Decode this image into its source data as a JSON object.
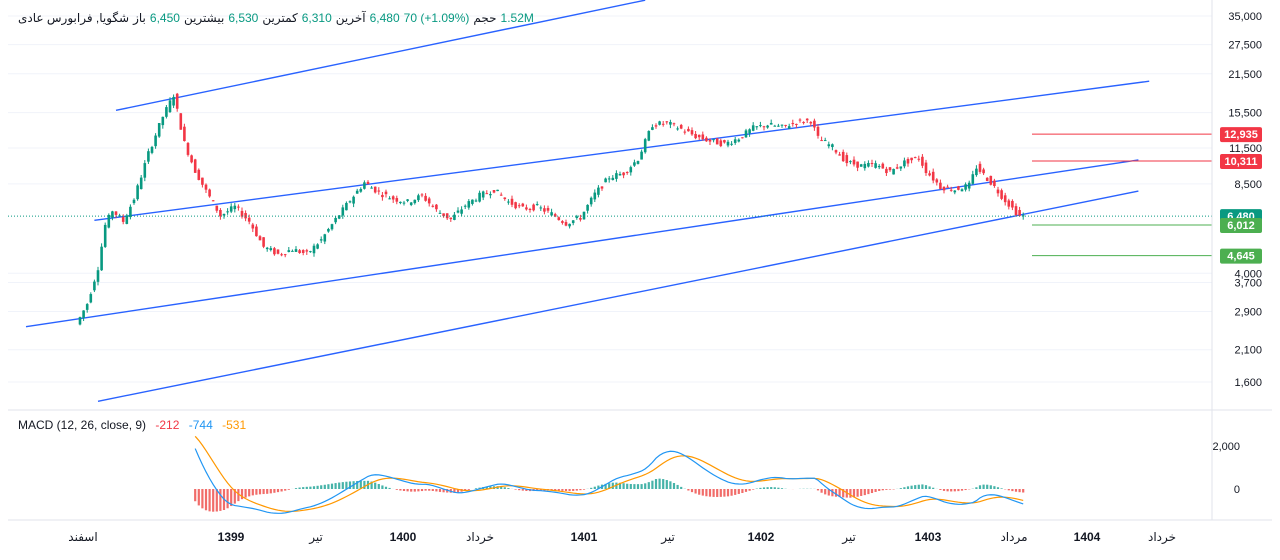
{
  "legend": {
    "title": "شگویا, فرابورس عادی",
    "open_label": "باز",
    "open_value": "6,450",
    "high_label": "بیشترین",
    "high_value": "6,530",
    "low_label": "کمترین",
    "low_value": "6,310",
    "close_label": "آخرین",
    "close_value": "6,480",
    "change": "70 (+1.09%)",
    "volume_label": "حجم",
    "volume_value": "1.52M"
  },
  "macd_legend": {
    "label": "MACD (12, 26, close, 9)",
    "hist": "-212",
    "macd": "-744",
    "signal": "-531"
  },
  "colors": {
    "up": "#089981",
    "down": "#f23645",
    "channel": "#2962ff",
    "macd": "#2196f3",
    "signal": "#ff9800",
    "resistance": "#f23645",
    "support": "#4caf50"
  },
  "chart_data": {
    "type": "candlestick",
    "y_scale": "log",
    "price_ticks": [
      "35,000",
      "27,500",
      "21,500",
      "15,500",
      "11,500",
      "8,500",
      "4,000",
      "3,700",
      "2,900",
      "2,100",
      "1,600"
    ],
    "price_tick_values": [
      35000,
      27500,
      21500,
      15500,
      11500,
      8500,
      4000,
      3700,
      2900,
      2100,
      1600
    ],
    "time_labels": [
      "اسفند",
      "1399",
      "تیر",
      "1400",
      "خرداد",
      "1401",
      "تیر",
      "1402",
      "تیر",
      "1403",
      "مرداد",
      "1404",
      "خرداد"
    ],
    "time_bold": [
      false,
      true,
      false,
      true,
      false,
      true,
      false,
      true,
      false,
      true,
      false,
      true,
      false
    ],
    "price_badges": [
      {
        "label": "12,935",
        "value": 12935,
        "kind": "resistance"
      },
      {
        "label": "10,311",
        "value": 10311,
        "kind": "resistance"
      },
      {
        "label": "6,480",
        "value": 6480,
        "kind": "last"
      },
      {
        "label": "6,012",
        "value": 6012,
        "kind": "support"
      },
      {
        "label": "4,645",
        "value": 4645,
        "kind": "support"
      }
    ],
    "price_path": [
      [
        0,
        2600
      ],
      [
        3,
        3100
      ],
      [
        6,
        4200
      ],
      [
        8,
        6000
      ],
      [
        10,
        6800
      ],
      [
        13,
        6200
      ],
      [
        16,
        7500
      ],
      [
        20,
        11000
      ],
      [
        24,
        15000
      ],
      [
        27,
        18000
      ],
      [
        30,
        12000
      ],
      [
        33,
        9500
      ],
      [
        36,
        8000
      ],
      [
        40,
        6500
      ],
      [
        44,
        7000
      ],
      [
        48,
        6200
      ],
      [
        52,
        5000
      ],
      [
        56,
        4700
      ],
      [
        60,
        4900
      ],
      [
        64,
        4700
      ],
      [
        68,
        5300
      ],
      [
        72,
        6300
      ],
      [
        76,
        7400
      ],
      [
        80,
        8600
      ],
      [
        84,
        7900
      ],
      [
        88,
        7500
      ],
      [
        92,
        7300
      ],
      [
        96,
        7700
      ],
      [
        100,
        6800
      ],
      [
        104,
        6300
      ],
      [
        108,
        7100
      ],
      [
        112,
        7700
      ],
      [
        116,
        8100
      ],
      [
        120,
        7300
      ],
      [
        124,
        6900
      ],
      [
        128,
        7000
      ],
      [
        132,
        6600
      ],
      [
        136,
        6100
      ],
      [
        140,
        6400
      ],
      [
        144,
        7800
      ],
      [
        148,
        9000
      ],
      [
        152,
        9300
      ],
      [
        156,
        10500
      ],
      [
        160,
        14000
      ],
      [
        164,
        14200
      ],
      [
        168,
        13500
      ],
      [
        172,
        12700
      ],
      [
        176,
        12200
      ],
      [
        180,
        11900
      ],
      [
        184,
        12500
      ],
      [
        188,
        13600
      ],
      [
        192,
        14000
      ],
      [
        196,
        13700
      ],
      [
        200,
        14300
      ],
      [
        204,
        14500
      ],
      [
        206,
        12500
      ],
      [
        210,
        11600
      ],
      [
        214,
        10200
      ],
      [
        218,
        9900
      ],
      [
        222,
        10000
      ],
      [
        226,
        9400
      ],
      [
        230,
        10200
      ],
      [
        234,
        10600
      ],
      [
        236,
        9500
      ],
      [
        240,
        8300
      ],
      [
        244,
        8100
      ],
      [
        248,
        8400
      ],
      [
        250,
        9800
      ],
      [
        254,
        8600
      ],
      [
        258,
        7400
      ],
      [
        262,
        6480
      ]
    ],
    "channel_lines": [
      {
        "name": "channel-top",
        "points": [
          [
            10,
            15800
          ],
          [
            157,
            40000
          ]
        ]
      },
      {
        "name": "channel-upper-mid",
        "points": [
          [
            4,
            6250
          ],
          [
            297,
            20200
          ]
        ]
      },
      {
        "name": "channel-lower-mid",
        "points": [
          [
            -15,
            2550
          ],
          [
            294,
            10400
          ]
        ]
      },
      {
        "name": "channel-bottom",
        "points": [
          [
            5,
            1360
          ],
          [
            294,
            8000
          ]
        ]
      }
    ],
    "macd": {
      "y_ticks": [
        "2,000",
        "0"
      ],
      "y_tick_values": [
        2000,
        0
      ],
      "macd_values": [
        -744
      ],
      "signal_values": [
        -531
      ],
      "hist_values": [
        -212
      ]
    }
  }
}
